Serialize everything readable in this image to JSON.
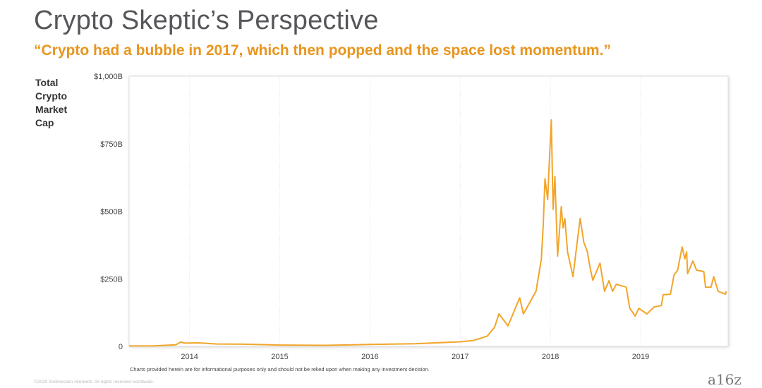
{
  "header": {
    "title": "Crypto Skeptic’s Perspective",
    "subtitle": "“Crypto had a bubble in 2017, which then popped and the space lost momentum.”"
  },
  "footer": {
    "disclaimer": "Charts provided herein are for informational purposes only and should not be relied upon when making any investment decision.",
    "copyright": "©2020 Andreessen Horowitz. All rights reserved worldwide.",
    "logo": "a16z"
  },
  "colors": {
    "line": "#f2a52a",
    "title": "#55565a",
    "subtitle": "#e8951d"
  },
  "chart_data": {
    "type": "line",
    "title": "",
    "ylabel": "Total Crypto Market Cap",
    "ylabel_lines": [
      "Total",
      "Crypto",
      "Market",
      "Cap"
    ],
    "xlabel": "",
    "xlim": [
      2013.33,
      2019.97
    ],
    "ylim": [
      0,
      1000
    ],
    "x_ticks": [
      2014,
      2015,
      2016,
      2017,
      2018,
      2019
    ],
    "x_tick_labels": [
      "2014",
      "2015",
      "2016",
      "2017",
      "2018",
      "2019"
    ],
    "y_ticks": [
      0,
      250,
      500,
      750,
      1000
    ],
    "y_tick_labels": [
      "0",
      "$250B",
      "$500B",
      "$750B",
      "$1,000B"
    ],
    "grid": "vertical dotted at year ticks",
    "series": [
      {
        "name": "Total Crypto Market Cap ($B)",
        "x": [
          2013.33,
          2013.6,
          2013.85,
          2013.9,
          2013.95,
          2014.1,
          2014.3,
          2014.6,
          2015.0,
          2015.5,
          2016.0,
          2016.5,
          2017.0,
          2017.15,
          2017.3,
          2017.38,
          2017.43,
          2017.53,
          2017.66,
          2017.7,
          2017.8,
          2017.84,
          2017.9,
          2017.92,
          2017.94,
          2017.97,
          2017.98,
          2018.01,
          2018.02,
          2018.03,
          2018.05,
          2018.06,
          2018.08,
          2018.12,
          2018.14,
          2018.16,
          2018.19,
          2018.25,
          2018.29,
          2018.33,
          2018.37,
          2018.41,
          2018.44,
          2018.47,
          2018.55,
          2018.6,
          2018.65,
          2018.69,
          2018.73,
          2018.84,
          2018.88,
          2018.94,
          2018.98,
          2019.07,
          2019.15,
          2019.23,
          2019.25,
          2019.33,
          2019.37,
          2019.41,
          2019.46,
          2019.49,
          2019.51,
          2019.52,
          2019.58,
          2019.62,
          2019.7,
          2019.72,
          2019.78,
          2019.81,
          2019.86,
          2019.94,
          2019.95
        ],
        "y": [
          1.5,
          2,
          6,
          16,
          12,
          13,
          9,
          8,
          5,
          4,
          7,
          10,
          17,
          22,
          38,
          70,
          120,
          76,
          180,
          120,
          180,
          204,
          324,
          446,
          621,
          543,
          629,
          838,
          663,
          507,
          629,
          525,
          334,
          517,
          439,
          473,
          350,
          258,
          368,
          473,
          386,
          350,
          290,
          245,
          308,
          204,
          243,
          204,
          230,
          219,
          141,
          112,
          141,
          120,
          146,
          151,
          191,
          193,
          264,
          282,
          368,
          324,
          350,
          269,
          316,
          282,
          277,
          219,
          219,
          258,
          204,
          193,
          204
        ]
      }
    ]
  }
}
